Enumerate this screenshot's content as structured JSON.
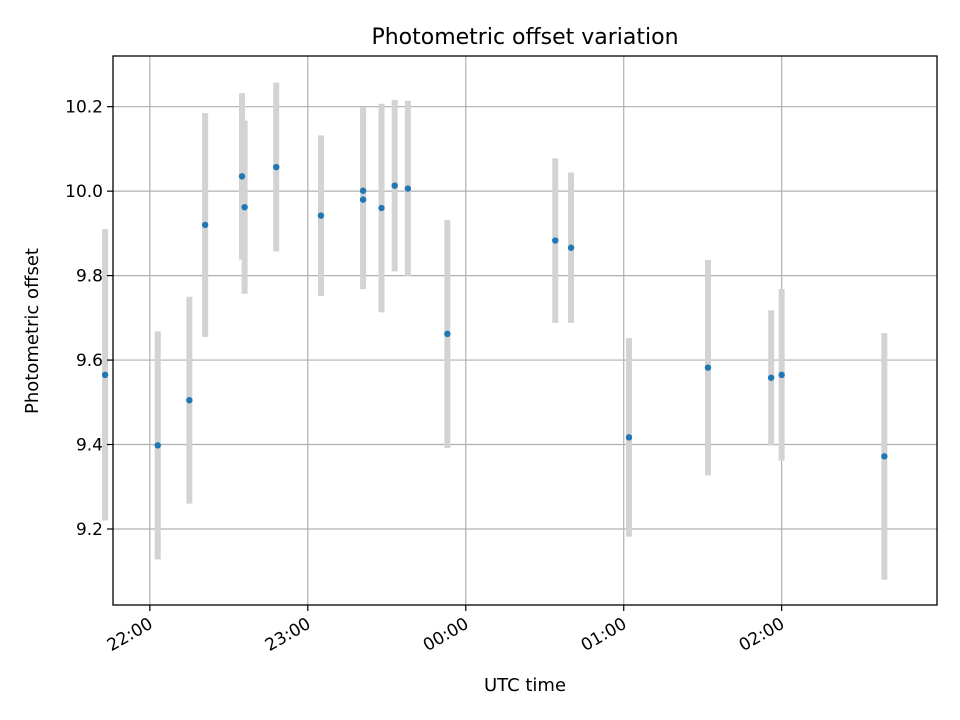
{
  "chart_data": {
    "type": "scatter",
    "title": "Photometric offset variation",
    "xlabel": "UTC time",
    "ylabel": "Photometric offset",
    "x_is_time": true,
    "xlim": [
      "21:46",
      "02:59"
    ],
    "ylim": [
      9.02,
      10.32
    ],
    "xticks": [
      {
        "time": "22:00",
        "label": "22:00"
      },
      {
        "time": "23:00",
        "label": "23:00"
      },
      {
        "time": "00:00",
        "label": "00:00"
      },
      {
        "time": "01:00",
        "label": "01:00"
      },
      {
        "time": "02:00",
        "label": "02:00"
      }
    ],
    "yticks": [
      9.2,
      9.4,
      9.6,
      9.8,
      10.0,
      10.2
    ],
    "grid": true,
    "marker_color": "#1f77b4",
    "errorbar_color": "#d3d3d3",
    "points": [
      {
        "time": "21:43",
        "y": 9.565,
        "yerr": 0.345
      },
      {
        "time": "22:03",
        "y": 9.398,
        "yerr": 0.27
      },
      {
        "time": "22:15",
        "y": 9.505,
        "yerr": 0.245
      },
      {
        "time": "22:21",
        "y": 9.92,
        "yerr": 0.265
      },
      {
        "time": "22:35",
        "y": 10.035,
        "yerr": 0.197
      },
      {
        "time": "22:36",
        "y": 9.962,
        "yerr": 0.205
      },
      {
        "time": "22:48",
        "y": 10.057,
        "yerr": 0.2
      },
      {
        "time": "23:05",
        "y": 9.942,
        "yerr": 0.19
      },
      {
        "time": "23:21",
        "y": 10.001,
        "yerr": 0.197
      },
      {
        "time": "23:21",
        "y": 9.98,
        "yerr": 0.212
      },
      {
        "time": "23:28",
        "y": 9.96,
        "yerr": 0.247
      },
      {
        "time": "23:33",
        "y": 10.013,
        "yerr": 0.203
      },
      {
        "time": "23:38",
        "y": 10.006,
        "yerr": 0.208
      },
      {
        "time": "23:53",
        "y": 9.662,
        "yerr": 0.27
      },
      {
        "time": "00:34",
        "y": 9.883,
        "yerr": 0.195
      },
      {
        "time": "00:40",
        "y": 9.866,
        "yerr": 0.178
      },
      {
        "time": "01:02",
        "y": 9.417,
        "yerr": 0.235
      },
      {
        "time": "01:32",
        "y": 9.582,
        "yerr": 0.255
      },
      {
        "time": "01:56",
        "y": 9.558,
        "yerr": 0.16
      },
      {
        "time": "02:00",
        "y": 9.565,
        "yerr": 0.203
      },
      {
        "time": "02:39",
        "y": 9.372,
        "yerr": 0.292
      }
    ]
  }
}
